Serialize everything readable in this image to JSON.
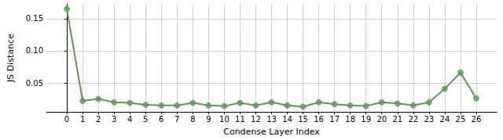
{
  "chart_data": {
    "type": "line",
    "x_label": "Condense Layer Index",
    "y_label": "JS Distance",
    "x": [
      0,
      1,
      2,
      3,
      4,
      5,
      6,
      7,
      8,
      9,
      10,
      11,
      12,
      13,
      14,
      15,
      16,
      17,
      18,
      19,
      20,
      21,
      22,
      23,
      24,
      25,
      26
    ],
    "values": [
      0.165,
      0.022,
      0.025,
      0.02,
      0.019,
      0.016,
      0.015,
      0.015,
      0.019,
      0.015,
      0.014,
      0.019,
      0.015,
      0.02,
      0.015,
      0.013,
      0.02,
      0.017,
      0.015,
      0.014,
      0.02,
      0.018,
      0.015,
      0.02,
      0.041,
      0.066,
      0.026
    ],
    "color": "#5a9a55",
    "marker": "circle",
    "xlim": [
      -1.3,
      27.3
    ],
    "xticks": [
      0,
      1,
      2,
      3,
      4,
      5,
      6,
      7,
      8,
      9,
      10,
      11,
      12,
      13,
      14,
      15,
      16,
      17,
      18,
      19,
      20,
      21,
      22,
      23,
      24,
      25,
      26
    ],
    "ylim": [
      0.005,
      0.173
    ],
    "yticks": [
      0.05,
      {
        "value": 0.1,
        "label": "0.10"
      },
      0.15
    ],
    "grid": true
  }
}
